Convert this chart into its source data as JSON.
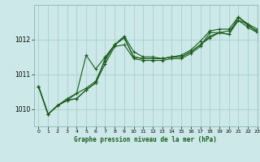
{
  "title": "Graphe pression niveau de la mer (hPa)",
  "bg_color": "#cce8e8",
  "grid_color": "#aad0d0",
  "line_color": "#1a5c1a",
  "xlim": [
    -0.5,
    23
  ],
  "ylim": [
    1009.5,
    1013.0
  ],
  "xticks": [
    0,
    1,
    2,
    3,
    4,
    5,
    6,
    7,
    8,
    9,
    10,
    11,
    12,
    13,
    14,
    15,
    16,
    17,
    18,
    19,
    20,
    21,
    22,
    23
  ],
  "yticks": [
    1010,
    1011,
    1012
  ],
  "series": [
    [
      1010.65,
      1009.85,
      1010.1,
      1010.25,
      1010.3,
      1010.55,
      1010.75,
      1011.45,
      1011.85,
      1012.05,
      1011.5,
      1011.45,
      1011.45,
      1011.45,
      1011.5,
      1011.5,
      1011.65,
      1011.85,
      1012.05,
      1012.2,
      1012.15,
      1012.55,
      1012.35,
      1012.2
    ],
    [
      1010.65,
      1009.85,
      1010.1,
      1010.25,
      1010.3,
      1010.55,
      1010.75,
      1011.3,
      1011.8,
      1011.85,
      1011.45,
      1011.4,
      1011.4,
      1011.4,
      1011.45,
      1011.45,
      1011.6,
      1011.8,
      1012.2,
      1012.2,
      1012.25,
      1012.55,
      1012.45,
      1012.2
    ],
    [
      1010.65,
      1009.85,
      1010.1,
      1010.25,
      1010.45,
      1010.6,
      1010.8,
      1011.4,
      1011.85,
      1012.05,
      1011.5,
      1011.45,
      1011.45,
      1011.45,
      1011.5,
      1011.5,
      1011.65,
      1011.85,
      1012.1,
      1012.2,
      1012.15,
      1012.65,
      1012.4,
      1012.25
    ],
    [
      1010.65,
      1009.85,
      1010.1,
      1010.3,
      1010.45,
      1011.55,
      1011.15,
      1011.5,
      1011.85,
      1012.1,
      1011.65,
      1011.5,
      1011.5,
      1011.45,
      1011.5,
      1011.55,
      1011.7,
      1011.95,
      1012.25,
      1012.3,
      1012.3,
      1012.65,
      1012.45,
      1012.3
    ]
  ]
}
